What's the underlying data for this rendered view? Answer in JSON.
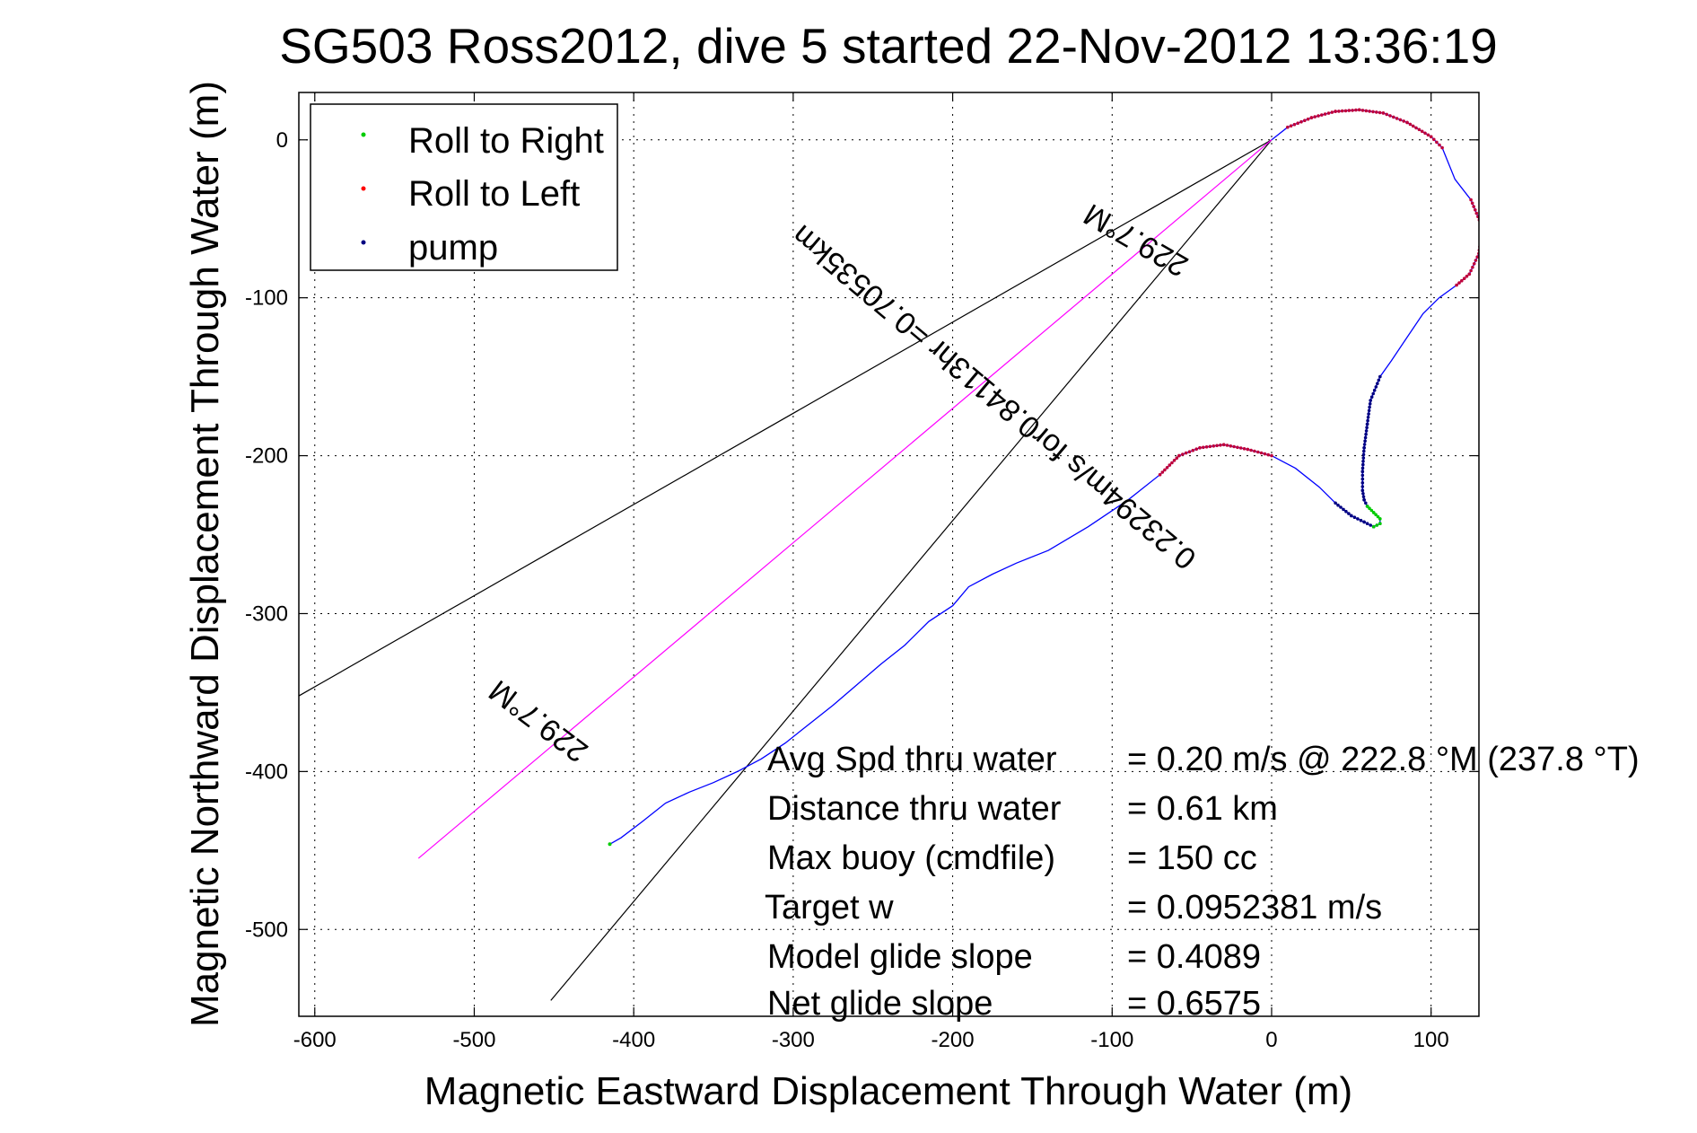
{
  "chart_data": {
    "type": "line",
    "title": "SG503 Ross2012, dive 5 started 22-Nov-2012 13:36:19",
    "xlabel": "Magnetic Eastward Displacement Through Water (m)",
    "ylabel": "Magnetic Northward Displacement Through Water (m)",
    "xlim": [
      -610,
      130
    ],
    "ylim": [
      -555,
      30
    ],
    "grid": true,
    "x_ticks": [
      -600,
      -500,
      -400,
      -300,
      -200,
      -100,
      0,
      100
    ],
    "y_ticks": [
      0,
      -100,
      -200,
      -300,
      -400,
      -500
    ],
    "x_tick_labels": [
      "-600",
      "-500",
      "-400",
      "-300",
      "-200",
      "-100",
      "0",
      "100"
    ],
    "y_tick_labels": [
      "0",
      "-100",
      "-200",
      "-300",
      "-400",
      "-500"
    ],
    "legend": {
      "placement": "top-left",
      "entries": [
        {
          "label": "Roll to Right",
          "color": "#00cc00"
        },
        {
          "label": "Roll to Left",
          "color": "#ff0000"
        },
        {
          "label": "pump",
          "color": "#000080"
        }
      ]
    },
    "track": {
      "color": "#0000ff",
      "x": [
        0,
        10,
        25,
        40,
        55,
        70,
        85,
        100,
        107,
        115,
        125,
        132,
        130,
        124,
        116,
        105,
        95,
        85,
        75,
        68,
        62,
        60,
        58,
        57,
        57,
        58,
        60,
        64,
        68,
        68,
        64,
        58,
        50,
        40,
        30,
        15,
        0,
        -15,
        -30,
        -45,
        -58,
        -70,
        -90,
        -115,
        -140,
        -160,
        -175,
        -190,
        -200,
        -215,
        -230,
        -245,
        -260,
        -275,
        -290,
        -305,
        -320,
        -335,
        -350,
        -365,
        -380,
        -395,
        -408,
        -415
      ],
      "y": [
        0,
        8,
        14,
        18,
        19,
        17,
        11,
        2,
        -5,
        -25,
        -38,
        -55,
        -72,
        -85,
        -92,
        -100,
        -110,
        -125,
        -140,
        -150,
        -165,
        -180,
        -195,
        -210,
        -222,
        -228,
        -232,
        -236,
        -240,
        -243,
        -245,
        -242,
        -238,
        -230,
        -220,
        -208,
        -200,
        -196,
        -193,
        -195,
        -200,
        -212,
        -228,
        -245,
        -260,
        -268,
        -275,
        -283,
        -295,
        -305,
        -320,
        -332,
        -345,
        -358,
        -370,
        -382,
        -392,
        -400,
        -407,
        -413,
        -420,
        -432,
        -442,
        -446
      ]
    },
    "roll_left_ranges": [
      [
        1,
        8
      ],
      [
        10,
        14
      ],
      [
        36,
        41
      ]
    ],
    "pump_ranges": [
      [
        19,
        26
      ],
      [
        29,
        33
      ]
    ],
    "roll_right_ranges": [
      [
        26,
        30
      ]
    ],
    "heading_lines": [
      {
        "color": "#000000",
        "x": [
          0,
          -615
        ],
        "y": [
          0,
          -355
        ]
      },
      {
        "color": "#000000",
        "x": [
          0,
          -452
        ],
        "y": [
          0,
          -545
        ]
      },
      {
        "color": "#ff00ff",
        "x": [
          0,
          -535
        ],
        "y": [
          0,
          -455
        ]
      }
    ],
    "annotations": [
      {
        "id": "heading-upper",
        "text": "229.7°M",
        "x": -82,
        "y": -58,
        "angle": 210
      },
      {
        "id": "speed-label",
        "text": "0.23294m/s for0.84113hr =0.70535km",
        "x": -170,
        "y": -158,
        "angle": 220
      },
      {
        "id": "heading-lower",
        "text": "229.7°M",
        "x": -456,
        "y": -363,
        "angle": 217
      }
    ],
    "stats": [
      {
        "label": "Avg Spd thru water",
        "value": "=  0.20 m/s @ 222.8 °M (237.8 °T)"
      },
      {
        "label": "Distance thru water",
        "value": "=  0.61 km"
      },
      {
        "label": "Max buoy (cmdfile)",
        "value": "= 150 cc"
      },
      {
        "label": "Target w",
        "value": "= 0.0952381 m/s"
      },
      {
        "label": "Model glide slope",
        "value": "= 0.4089"
      },
      {
        "label": "Net glide slope",
        "value": "= 0.6575"
      }
    ]
  }
}
